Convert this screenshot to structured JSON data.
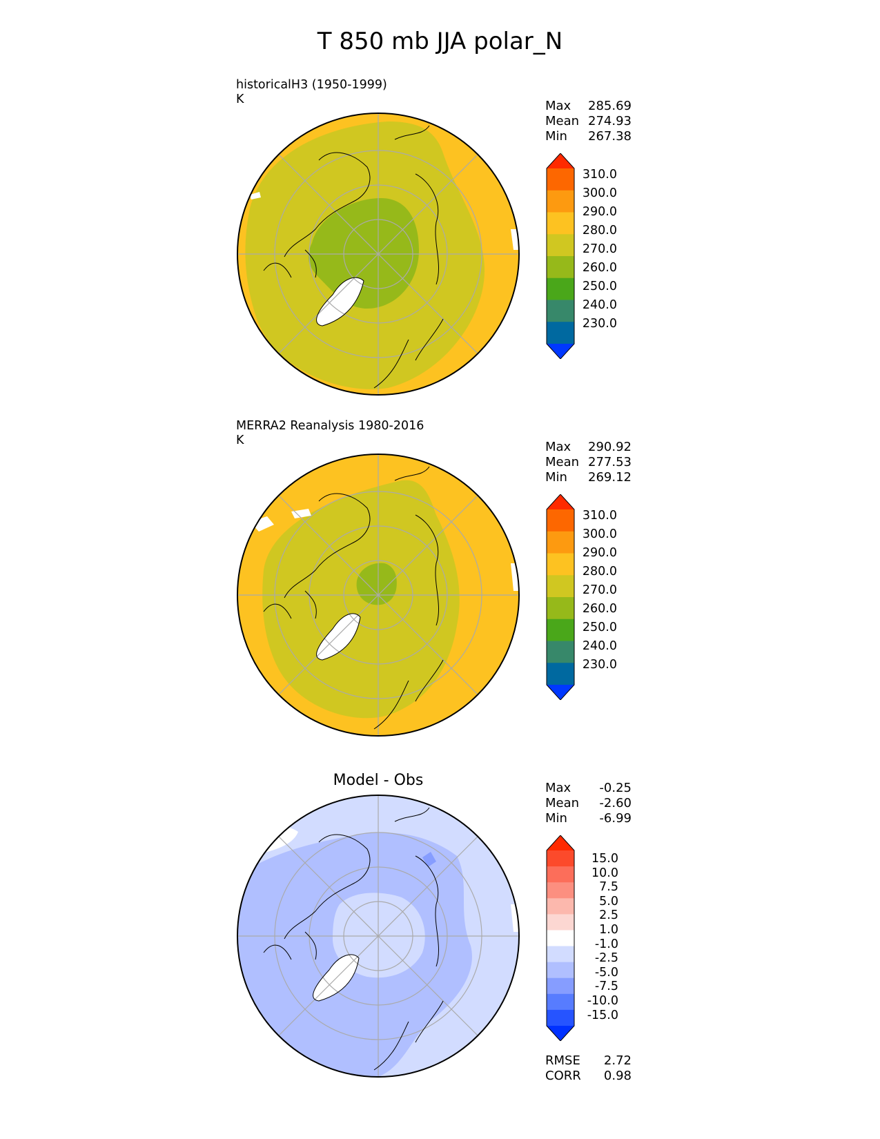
{
  "title": "T 850 mb JJA polar_N",
  "colors": {
    "cb_abs": [
      "#0038ff",
      "#0069a0",
      "#37886a",
      "#4aa71a",
      "#96b91a",
      "#d0c721",
      "#fdc221",
      "#fd9a10",
      "#fd6700",
      "#ff2a00"
    ],
    "cb_diff": [
      "#0031ff",
      "#2654ff",
      "#577cff",
      "#869dff",
      "#b0bfff",
      "#d2dcff",
      "#ffffff",
      "#fcd7d2",
      "#fcb8ad",
      "#fc8f80",
      "#fc6e5a",
      "#fc4a2b",
      "#ff2a00"
    ],
    "green_core": "#96b91a",
    "olive": "#d0c721",
    "orange": "#fdc221",
    "diff_light": "#d2dcff",
    "diff_mid": "#b0bfff",
    "diff_dark": "#869dff"
  },
  "panels": [
    {
      "label1": "historicalH3 (1950-1999)",
      "label2": "K",
      "stats": {
        "max_label": "Max",
        "max": "285.69",
        "mean_label": "Mean",
        "mean": "274.93",
        "min_label": "Min",
        "min": "267.38"
      },
      "colorbar_labels": [
        "310.0",
        "300.0",
        "290.0",
        "280.0",
        "270.0",
        "260.0",
        "250.0",
        "240.0",
        "230.0"
      ]
    },
    {
      "label1": "MERRA2 Reanalysis 1980-2016",
      "label2": "K",
      "stats": {
        "max_label": "Max",
        "max": "290.92",
        "mean_label": "Mean",
        "mean": "277.53",
        "min_label": "Min",
        "min": "269.12"
      },
      "colorbar_labels": [
        "310.0",
        "300.0",
        "290.0",
        "280.0",
        "270.0",
        "260.0",
        "250.0",
        "240.0",
        "230.0"
      ]
    },
    {
      "title": "Model - Obs",
      "stats": {
        "max_label": "Max",
        "max": "-0.25",
        "mean_label": "Mean",
        "mean": "-2.60",
        "min_label": "Min",
        "min": "-6.99"
      },
      "colorbar_labels": [
        "15.0",
        "10.0",
        "7.5",
        "5.0",
        "2.5",
        "1.0",
        "-1.0",
        "-2.5",
        "-5.0",
        "-7.5",
        "-10.0",
        "-15.0"
      ],
      "rmse_label": "RMSE",
      "rmse": "2.72",
      "corr_label": "CORR",
      "corr": "0.98"
    }
  ]
}
